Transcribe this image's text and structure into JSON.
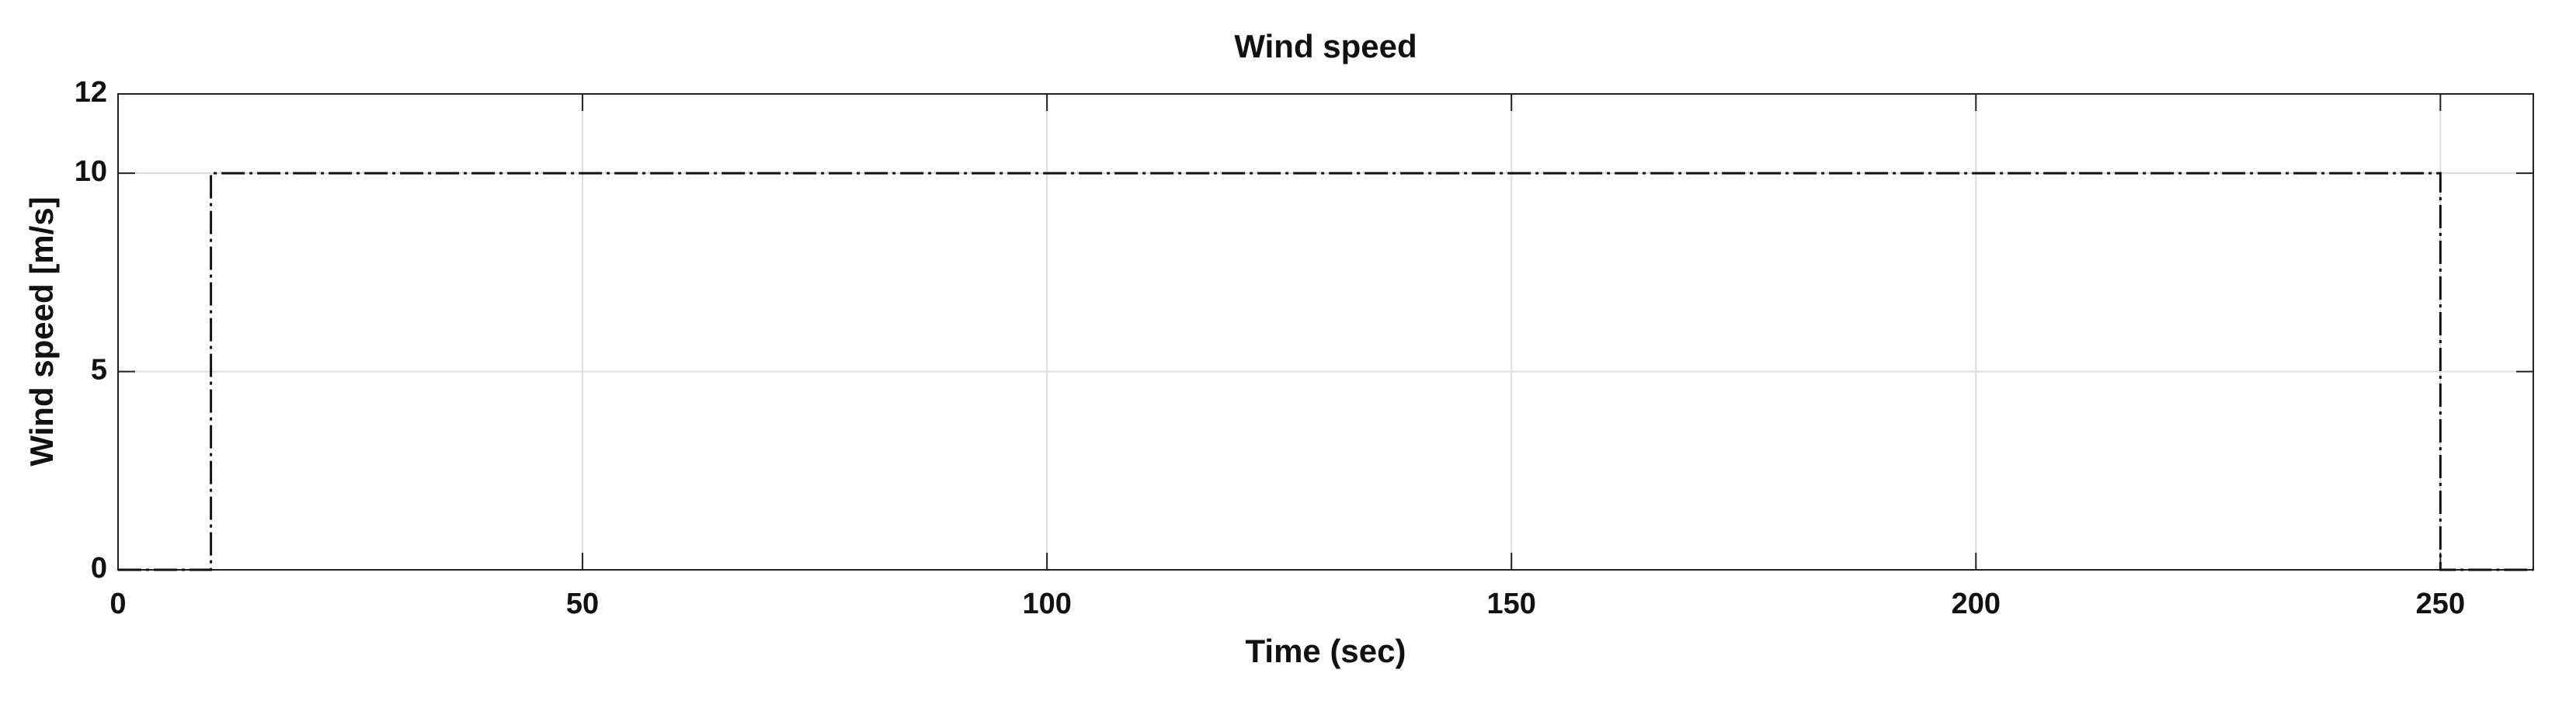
{
  "chart_data": {
    "type": "line",
    "title": "Wind speed",
    "x_label": "Time (sec)",
    "y_label": "Wind speed  [m/s]",
    "x": [
      0,
      10,
      10,
      250,
      250,
      260
    ],
    "series": [
      {
        "name": "Wind speed",
        "color": "#111111",
        "values": [
          0,
          0,
          10,
          10,
          0,
          0
        ]
      }
    ],
    "xlim": [
      0,
      260
    ],
    "xticks": [
      0,
      50,
      100,
      150,
      200,
      250
    ],
    "ylim": [
      0,
      12
    ],
    "yticks": [
      0,
      5,
      10,
      12
    ],
    "grid": true
  }
}
